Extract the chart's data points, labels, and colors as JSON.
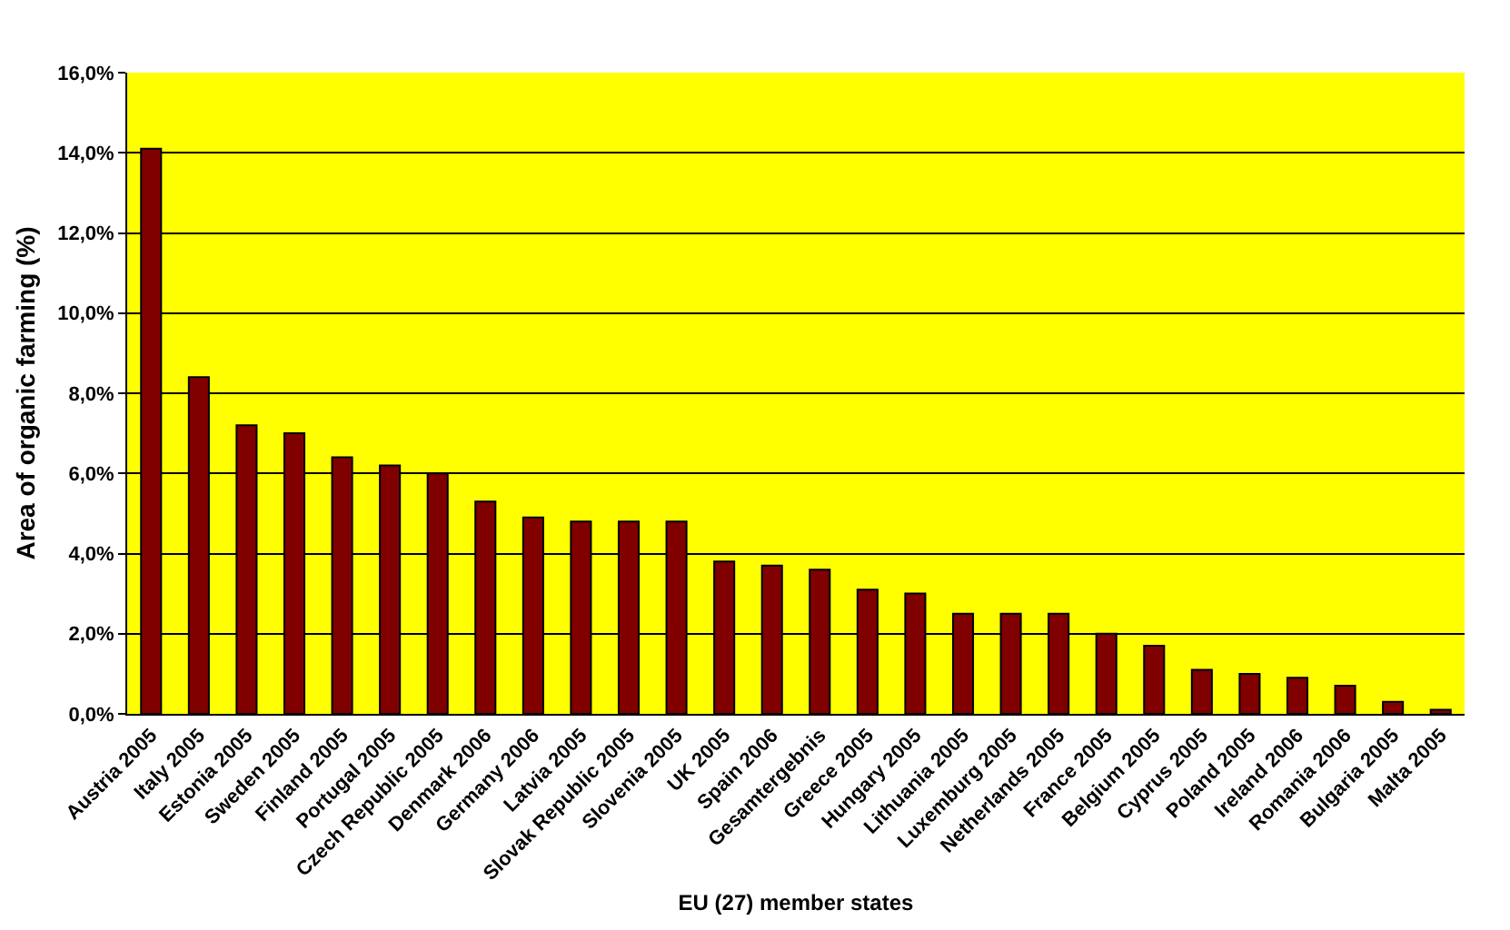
{
  "chart_data": {
    "type": "bar",
    "xlabel": "EU (27) member states",
    "ylabel": "Area of organic farming (%)",
    "categories": [
      "Austria 2005",
      "Italy 2005",
      "Estonia 2005",
      "Sweden 2005",
      "Finland 2005",
      "Portugal 2005",
      "Czech Republic 2005",
      "Denmark 2006",
      "Germany 2006",
      "Latvia 2005",
      "Slovak Republic 2005",
      "Slovenia 2005",
      "UK 2005",
      "Spain 2006",
      "Gesamtergebnis",
      "Greece 2005",
      "Hungary 2005",
      "Lithuania 2005",
      "Luxemburg 2005",
      "Netherlands 2005",
      "France 2005",
      "Belgium 2005",
      "Cyprus 2005",
      "Poland 2005",
      "Ireland 2006",
      "Romania 2006",
      "Bulgaria 2005",
      "Malta 2005"
    ],
    "values": [
      14.1,
      8.4,
      7.2,
      7.0,
      6.4,
      6.2,
      6.0,
      5.3,
      4.9,
      4.8,
      4.8,
      4.8,
      3.8,
      3.7,
      3.6,
      3.1,
      3.0,
      2.5,
      2.5,
      2.5,
      2.0,
      1.7,
      1.1,
      1.0,
      0.9,
      0.7,
      0.3,
      0.1
    ],
    "color": "#800000",
    "ylim": [
      0,
      16
    ],
    "yticks": [
      {
        "value": 0,
        "label": "0,0%"
      },
      {
        "value": 2,
        "label": "2,0%"
      },
      {
        "value": 4,
        "label": "4,0%"
      },
      {
        "value": 6,
        "label": "6,0%"
      },
      {
        "value": 8,
        "label": "8,0%"
      },
      {
        "value": 10,
        "label": "10,0%"
      },
      {
        "value": 12,
        "label": "12,0%"
      },
      {
        "value": 14,
        "label": "14,0%"
      },
      {
        "value": 16,
        "label": "16,0%"
      }
    ],
    "grid": "y"
  }
}
